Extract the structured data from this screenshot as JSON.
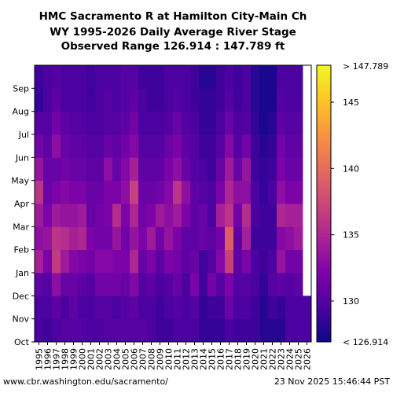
{
  "chart_data": {
    "type": "heatmap",
    "title_lines": [
      "HMC Sacramento R at Hamilton City-Main Ch",
      "WY 1995-2026 Daily Average River Stage",
      "Observed Range 126.914 : 147.789 ft"
    ],
    "xlabel": "",
    "ylabel": "",
    "x_categories": [
      "1995",
      "1996",
      "1997",
      "1998",
      "1999",
      "2000",
      "2001",
      "2002",
      "2003",
      "2004",
      "2005",
      "2006",
      "2007",
      "2008",
      "2009",
      "2010",
      "2011",
      "2012",
      "2013",
      "2014",
      "2015",
      "2016",
      "2017",
      "2018",
      "2019",
      "2020",
      "2021",
      "2022",
      "2023",
      "2024",
      "2025",
      "2026"
    ],
    "y_categories": [
      "Oct",
      "Nov",
      "Dec",
      "Jan",
      "Feb",
      "Mar",
      "Apr",
      "May",
      "Jun",
      "Jul",
      "Aug",
      "Sep"
    ],
    "value_range": [
      126.914,
      147.789
    ],
    "units": "ft",
    "colorbar": {
      "ticks": [
        130,
        135,
        140,
        145
      ],
      "min_label": "< 126.914",
      "max_label": "> 147.789",
      "colormap": "plasma"
    },
    "series": [
      {
        "year": "1995",
        "monthly_mean": [
          129.5,
          129.5,
          130.5,
          134.5,
          133.0,
          134.0,
          136.0,
          133.5,
          131.5,
          130.0,
          128.5,
          129.0
        ]
      },
      {
        "year": "1996",
        "monthly_mean": [
          129.0,
          129.5,
          130.0,
          132.0,
          133.5,
          132.0,
          131.0,
          131.0,
          130.5,
          130.0,
          129.5,
          129.5
        ]
      },
      {
        "year": "1997",
        "monthly_mean": [
          129.5,
          130.5,
          133.0,
          136.5,
          136.0,
          134.0,
          132.0,
          131.0,
          133.0,
          131.5,
          130.5,
          130.0
        ]
      },
      {
        "year": "1998",
        "monthly_mean": [
          130.0,
          129.5,
          131.0,
          134.0,
          135.5,
          133.5,
          132.5,
          131.5,
          131.0,
          130.5,
          129.5,
          129.5
        ]
      },
      {
        "year": "1999",
        "monthly_mean": [
          130.0,
          130.5,
          131.0,
          132.5,
          134.5,
          133.5,
          132.0,
          131.0,
          130.5,
          130.0,
          129.5,
          129.5
        ]
      },
      {
        "year": "2000",
        "monthly_mean": [
          130.0,
          129.5,
          130.5,
          132.0,
          135.0,
          134.0,
          132.0,
          131.0,
          130.5,
          130.0,
          129.5,
          129.5
        ]
      },
      {
        "year": "2001",
        "monthly_mean": [
          129.5,
          129.5,
          130.0,
          131.5,
          132.0,
          131.0,
          131.0,
          130.5,
          130.0,
          129.5,
          129.0,
          129.0
        ]
      },
      {
        "year": "2002",
        "monthly_mean": [
          129.5,
          130.0,
          131.5,
          132.5,
          131.5,
          131.5,
          131.0,
          130.5,
          130.0,
          129.5,
          129.5,
          129.5
        ]
      },
      {
        "year": "2003",
        "monthly_mean": [
          130.0,
          130.0,
          131.5,
          132.5,
          131.5,
          132.0,
          132.0,
          133.0,
          131.0,
          130.0,
          130.0,
          129.5
        ]
      },
      {
        "year": "2004",
        "monthly_mean": [
          130.0,
          129.5,
          131.5,
          132.0,
          133.5,
          135.5,
          132.0,
          131.0,
          130.5,
          130.0,
          129.5,
          129.5
        ]
      },
      {
        "year": "2005",
        "monthly_mean": [
          130.0,
          130.0,
          131.0,
          132.0,
          131.5,
          132.0,
          133.0,
          132.5,
          131.5,
          130.5,
          130.0,
          130.0
        ]
      },
      {
        "year": "2006",
        "monthly_mean": [
          130.0,
          130.5,
          132.5,
          135.0,
          133.5,
          135.0,
          137.0,
          134.5,
          132.5,
          131.5,
          130.5,
          130.0
        ]
      },
      {
        "year": "2007",
        "monthly_mean": [
          130.0,
          129.5,
          130.0,
          131.0,
          132.0,
          131.5,
          131.0,
          130.5,
          130.0,
          129.5,
          129.5,
          129.0
        ]
      },
      {
        "year": "2008",
        "monthly_mean": [
          129.5,
          129.5,
          130.5,
          132.0,
          134.0,
          132.0,
          131.0,
          130.5,
          130.0,
          129.5,
          129.0,
          129.0
        ]
      },
      {
        "year": "2009",
        "monthly_mean": [
          129.0,
          129.0,
          129.5,
          130.5,
          131.5,
          134.0,
          131.5,
          130.5,
          130.0,
          129.5,
          129.0,
          129.0
        ]
      },
      {
        "year": "2010",
        "monthly_mean": [
          129.0,
          129.5,
          130.0,
          132.0,
          133.5,
          133.0,
          132.5,
          132.0,
          131.0,
          130.0,
          129.5,
          129.5
        ]
      },
      {
        "year": "2011",
        "monthly_mean": [
          129.5,
          130.0,
          131.0,
          131.5,
          132.0,
          134.0,
          136.0,
          133.0,
          132.0,
          131.0,
          130.0,
          129.5
        ]
      },
      {
        "year": "2012",
        "monthly_mean": [
          129.5,
          129.5,
          129.5,
          130.5,
          130.5,
          132.0,
          133.0,
          131.0,
          130.5,
          130.0,
          129.5,
          129.5
        ]
      },
      {
        "year": "2013",
        "monthly_mean": [
          129.5,
          130.0,
          132.0,
          131.0,
          130.5,
          130.5,
          130.5,
          130.0,
          130.0,
          129.5,
          129.0,
          129.0
        ]
      },
      {
        "year": "2014",
        "monthly_mean": [
          128.5,
          128.5,
          129.0,
          129.0,
          131.0,
          131.0,
          130.0,
          129.5,
          129.0,
          128.5,
          128.5,
          128.0
        ]
      },
      {
        "year": "2015",
        "monthly_mean": [
          128.5,
          129.0,
          131.5,
          130.0,
          130.5,
          129.5,
          129.5,
          129.0,
          129.0,
          128.5,
          128.5,
          128.0
        ]
      },
      {
        "year": "2016",
        "monthly_mean": [
          128.5,
          129.0,
          130.0,
          132.5,
          131.5,
          134.5,
          132.0,
          131.0,
          130.0,
          129.5,
          129.0,
          129.0
        ]
      },
      {
        "year": "2017",
        "monthly_mean": [
          129.5,
          131.0,
          132.0,
          137.0,
          139.0,
          136.0,
          135.0,
          134.0,
          132.5,
          131.0,
          130.0,
          129.5
        ]
      },
      {
        "year": "2018",
        "monthly_mean": [
          129.0,
          129.5,
          130.0,
          130.5,
          130.5,
          131.5,
          133.0,
          131.0,
          130.0,
          129.5,
          129.0,
          129.0
        ]
      },
      {
        "year": "2019",
        "monthly_mean": [
          129.0,
          129.5,
          130.0,
          132.0,
          134.5,
          135.5,
          133.0,
          133.5,
          131.5,
          130.0,
          129.5,
          129.5
        ]
      },
      {
        "year": "2020",
        "monthly_mean": [
          129.0,
          129.0,
          129.5,
          129.5,
          129.0,
          129.5,
          129.5,
          129.0,
          129.0,
          128.5,
          128.0,
          128.0
        ]
      },
      {
        "year": "2021",
        "monthly_mean": [
          128.0,
          128.0,
          128.5,
          129.0,
          129.0,
          129.0,
          128.5,
          128.5,
          128.0,
          127.5,
          127.5,
          127.5
        ]
      },
      {
        "year": "2022",
        "monthly_mean": [
          128.0,
          129.0,
          130.0,
          129.5,
          129.0,
          129.0,
          129.5,
          129.0,
          128.5,
          128.0,
          127.5,
          127.5
        ]
      },
      {
        "year": "2023",
        "monthly_mean": [
          128.0,
          128.5,
          130.5,
          133.5,
          132.5,
          135.0,
          133.0,
          132.0,
          131.5,
          130.5,
          130.0,
          129.5
        ]
      },
      {
        "year": "2024",
        "monthly_mean": [
          129.5,
          129.5,
          130.0,
          131.5,
          133.0,
          134.5,
          132.0,
          131.0,
          130.5,
          130.0,
          129.5,
          129.5
        ]
      },
      {
        "year": "2025",
        "monthly_mean": [
          129.5,
          129.5,
          130.5,
          131.5,
          134.0,
          134.5,
          132.0,
          131.0,
          130.5,
          130.0,
          129.5,
          129.5
        ]
      },
      {
        "year": "2026",
        "monthly_mean": [
          129.5,
          129.5,
          null,
          null,
          null,
          null,
          null,
          null,
          null,
          null,
          null,
          null
        ]
      }
    ]
  },
  "footer": {
    "source": "www.cbr.washington.edu/sacramento/",
    "timestamp": "23 Nov 2025 15:46:44 PST"
  }
}
